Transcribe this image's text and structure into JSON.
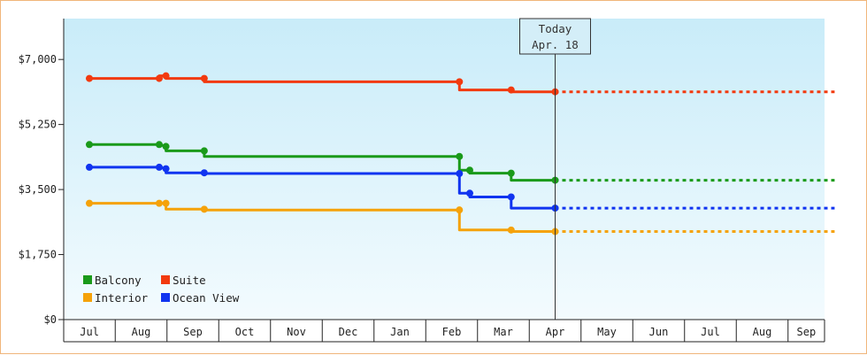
{
  "chart_data": {
    "type": "line",
    "step": true,
    "title": "",
    "xlabel": "",
    "ylabel": "",
    "ylim": [
      0,
      8100
    ],
    "yticks": [
      0,
      1750,
      3500,
      5250,
      7000
    ],
    "ytick_labels": [
      "$0",
      "$1,750",
      "$3,500",
      "$5,250",
      "$7,000"
    ],
    "categories": [
      "Jul",
      "Aug",
      "Sep",
      "Oct",
      "Nov",
      "Dec",
      "Jan",
      "Feb",
      "Mar",
      "Apr",
      "May",
      "Jun",
      "Jul",
      "Aug",
      "Sep"
    ],
    "xlim": [
      -0.05,
      14.45
    ],
    "today": {
      "x": 9.0,
      "line1": "Today",
      "line2": "Apr. 18"
    },
    "legend_position": "bottom-left",
    "grid": false,
    "series": [
      {
        "name": "Suite",
        "color": "#f23a0f",
        "points": [
          [
            0,
            6490
          ],
          [
            1.35,
            6490
          ],
          [
            1.35,
            6560
          ],
          [
            1.48,
            6560
          ],
          [
            1.48,
            6490
          ],
          [
            2.22,
            6490
          ],
          [
            2.22,
            6400
          ],
          [
            7.15,
            6400
          ],
          [
            7.15,
            6180
          ],
          [
            8.15,
            6180
          ],
          [
            8.15,
            6130
          ],
          [
            9.0,
            6130
          ]
        ],
        "forecast": [
          [
            9.0,
            6130
          ],
          [
            14.4,
            6130
          ]
        ]
      },
      {
        "name": "Balcony",
        "color": "#1a9a1a",
        "points": [
          [
            0,
            4710
          ],
          [
            1.35,
            4710
          ],
          [
            1.48,
            4660
          ],
          [
            1.48,
            4540
          ],
          [
            2.22,
            4540
          ],
          [
            2.22,
            4390
          ],
          [
            7.15,
            4390
          ],
          [
            7.15,
            4020
          ],
          [
            7.35,
            4020
          ],
          [
            7.35,
            3940
          ],
          [
            8.15,
            3940
          ],
          [
            8.15,
            3750
          ],
          [
            9.0,
            3750
          ]
        ],
        "forecast": [
          [
            9.0,
            3750
          ],
          [
            14.4,
            3750
          ]
        ]
      },
      {
        "name": "Ocean View",
        "color": "#1034f0",
        "points": [
          [
            0,
            4100
          ],
          [
            1.35,
            4100
          ],
          [
            1.48,
            4060
          ],
          [
            1.48,
            3950
          ],
          [
            2.22,
            3950
          ],
          [
            2.22,
            3930
          ],
          [
            7.15,
            3930
          ],
          [
            7.15,
            3400
          ],
          [
            7.35,
            3400
          ],
          [
            7.35,
            3300
          ],
          [
            8.15,
            3300
          ],
          [
            8.15,
            3000
          ],
          [
            9.0,
            3000
          ]
        ],
        "forecast": [
          [
            9.0,
            3000
          ],
          [
            14.4,
            3000
          ]
        ]
      },
      {
        "name": "Interior",
        "color": "#f5a20a",
        "points": [
          [
            0,
            3130
          ],
          [
            1.35,
            3130
          ],
          [
            1.48,
            3130
          ],
          [
            1.48,
            2970
          ],
          [
            2.22,
            2970
          ],
          [
            2.22,
            2950
          ],
          [
            7.15,
            2950
          ],
          [
            7.15,
            2410
          ],
          [
            8.15,
            2410
          ],
          [
            8.15,
            2370
          ],
          [
            9.0,
            2370
          ]
        ],
        "forecast": [
          [
            9.0,
            2370
          ],
          [
            14.4,
            2370
          ]
        ]
      }
    ],
    "legend": [
      {
        "name": "Balcony",
        "color": "#1a9a1a"
      },
      {
        "name": "Suite",
        "color": "#f23a0f"
      },
      {
        "name": "Interior",
        "color": "#f5a20a"
      },
      {
        "name": "Ocean View",
        "color": "#1034f0"
      }
    ]
  }
}
